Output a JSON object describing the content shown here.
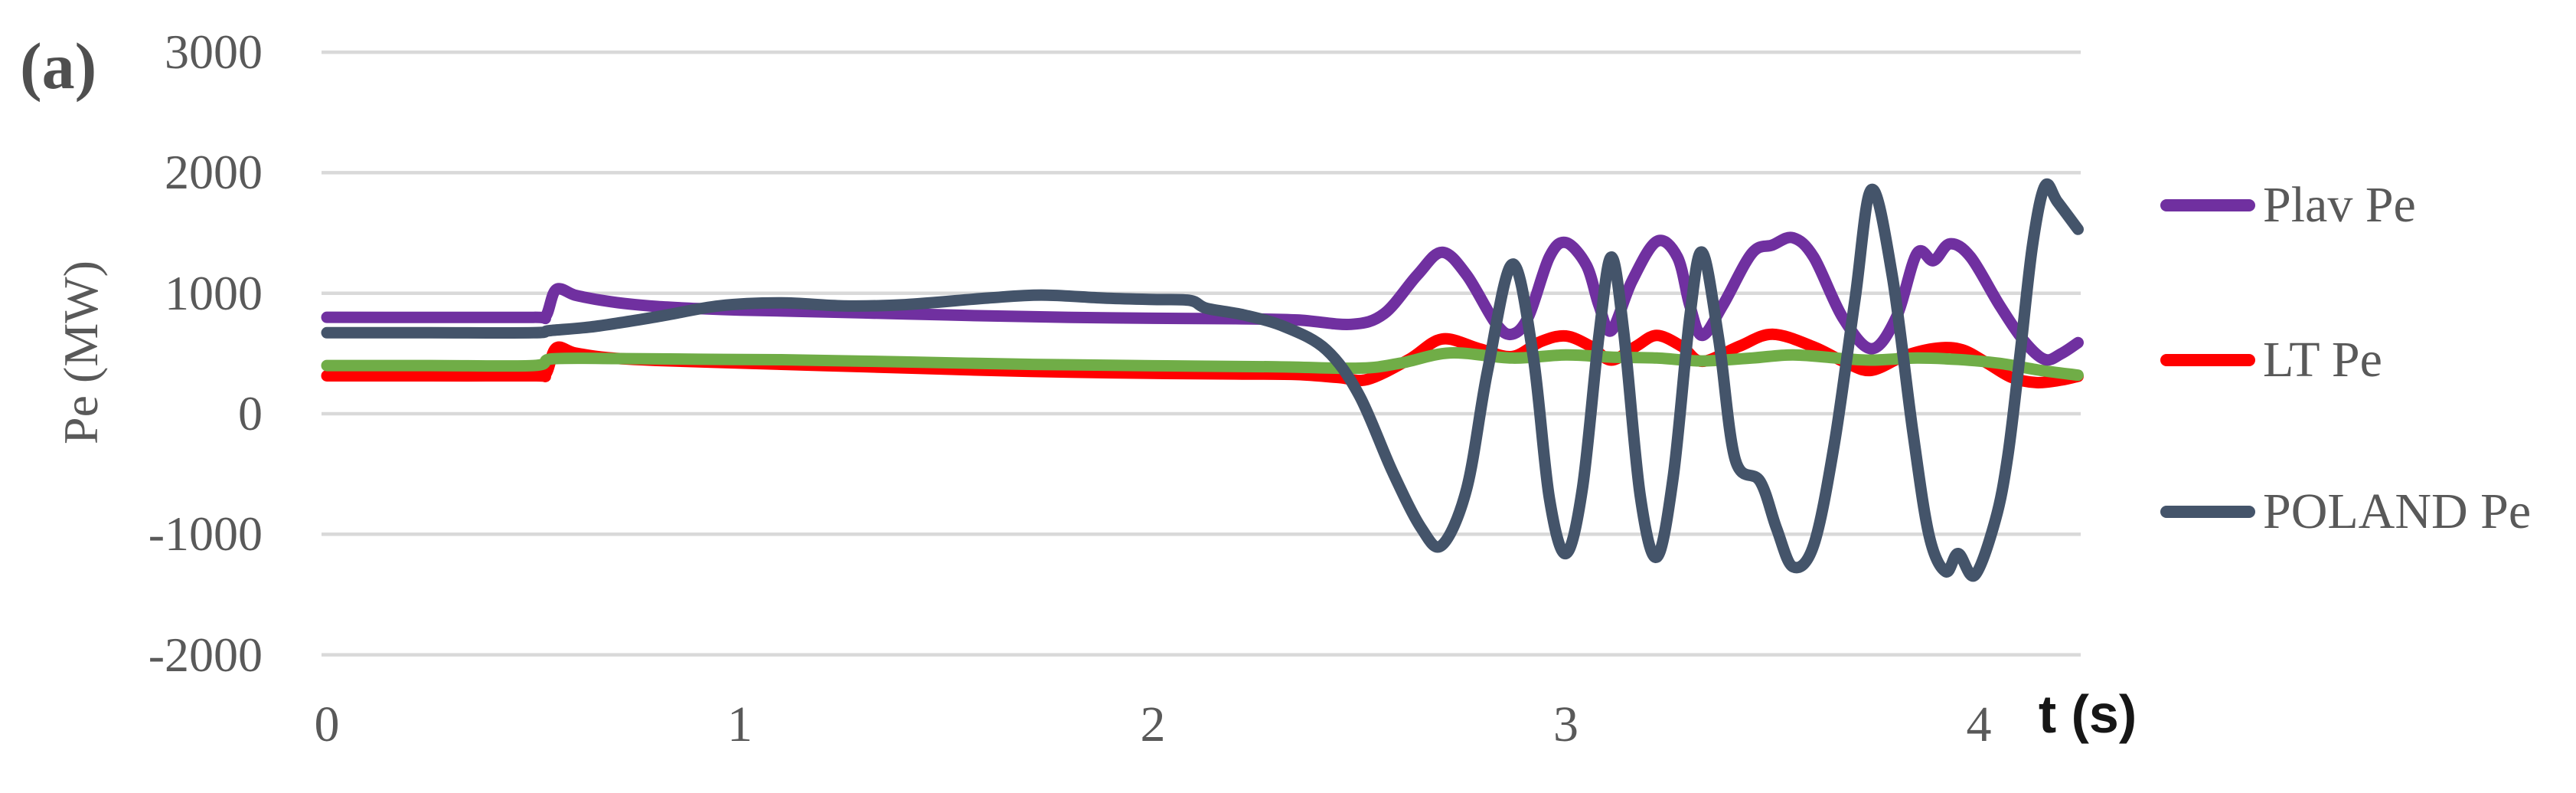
{
  "figure_label": "(a)",
  "axes": {
    "y_title": "Pe (MW)",
    "x_title": "t (s)",
    "y_ticks": [
      3000,
      2000,
      1000,
      0,
      -1000,
      -2000
    ],
    "x_ticks": [
      0,
      1,
      2,
      3,
      4
    ]
  },
  "legend": [
    {
      "label": "Plav Pe",
      "color": "#7030A0"
    },
    {
      "label": "LT Pe",
      "color": "#FF0000"
    },
    {
      "label": "POLAND Pe",
      "color": "#44546A"
    }
  ],
  "colors": {
    "background": "#FFFFFF",
    "gridline": "#D9D9D9",
    "tick_text": "#595959",
    "plav": "#7030A0",
    "lt": "#FF0000",
    "poland": "#44546A",
    "unlabeled_green": "#70AD47"
  },
  "chart_data": {
    "type": "line",
    "title": "",
    "xlabel": "t (s)",
    "ylabel": "Pe (MW)",
    "xlim": [
      0,
      4.24
    ],
    "ylim": [
      -2000,
      3000
    ],
    "grid": "horizontal-only",
    "legend_position": "right",
    "smooth_lines": true,
    "series": [
      {
        "name": "LT Pe",
        "color": "#FF0000",
        "points": [
          [
            0,
            315
          ],
          [
            0.25,
            315
          ],
          [
            0.5,
            315
          ],
          [
            0.53,
            330
          ],
          [
            0.555,
            545
          ],
          [
            0.6,
            505
          ],
          [
            0.68,
            465
          ],
          [
            0.8,
            442
          ],
          [
            1.0,
            420
          ],
          [
            1.2,
            400
          ],
          [
            1.4,
            380
          ],
          [
            1.6,
            360
          ],
          [
            1.8,
            345
          ],
          [
            2.0,
            335
          ],
          [
            2.2,
            330
          ],
          [
            2.35,
            325
          ],
          [
            2.45,
            300
          ],
          [
            2.52,
            285
          ],
          [
            2.62,
            450
          ],
          [
            2.7,
            620
          ],
          [
            2.79,
            540
          ],
          [
            2.87,
            475
          ],
          [
            2.94,
            600
          ],
          [
            3.0,
            645
          ],
          [
            3.06,
            560
          ],
          [
            3.11,
            445
          ],
          [
            3.17,
            560
          ],
          [
            3.22,
            650
          ],
          [
            3.28,
            560
          ],
          [
            3.33,
            435
          ],
          [
            3.42,
            560
          ],
          [
            3.5,
            660
          ],
          [
            3.6,
            555
          ],
          [
            3.68,
            420
          ],
          [
            3.74,
            360
          ],
          [
            3.82,
            480
          ],
          [
            3.9,
            545
          ],
          [
            3.96,
            530
          ],
          [
            4.02,
            420
          ],
          [
            4.08,
            300
          ],
          [
            4.14,
            258
          ],
          [
            4.2,
            280
          ],
          [
            4.24,
            310
          ]
        ]
      },
      {
        "name": "(unlabeled green series)",
        "color": "#70AD47",
        "points": [
          [
            0,
            400
          ],
          [
            0.25,
            400
          ],
          [
            0.5,
            400
          ],
          [
            0.545,
            455
          ],
          [
            0.7,
            458
          ],
          [
            0.9,
            452
          ],
          [
            1.1,
            448
          ],
          [
            1.4,
            430
          ],
          [
            1.7,
            410
          ],
          [
            2.0,
            398
          ],
          [
            2.3,
            390
          ],
          [
            2.5,
            378
          ],
          [
            2.6,
            420
          ],
          [
            2.72,
            505
          ],
          [
            2.87,
            462
          ],
          [
            3.0,
            488
          ],
          [
            3.11,
            470
          ],
          [
            3.22,
            462
          ],
          [
            3.33,
            438
          ],
          [
            3.45,
            462
          ],
          [
            3.55,
            488
          ],
          [
            3.67,
            458
          ],
          [
            3.74,
            445
          ],
          [
            3.85,
            462
          ],
          [
            3.95,
            450
          ],
          [
            4.05,
            418
          ],
          [
            4.15,
            360
          ],
          [
            4.24,
            320
          ]
        ]
      },
      {
        "name": "Plav Pe",
        "color": "#7030A0",
        "points": [
          [
            0,
            800
          ],
          [
            0.25,
            800
          ],
          [
            0.5,
            800
          ],
          [
            0.53,
            810
          ],
          [
            0.555,
            1030
          ],
          [
            0.6,
            985
          ],
          [
            0.65,
            950
          ],
          [
            0.72,
            915
          ],
          [
            0.8,
            890
          ],
          [
            0.9,
            872
          ],
          [
            1.0,
            860
          ],
          [
            1.2,
            845
          ],
          [
            1.4,
            828
          ],
          [
            1.6,
            812
          ],
          [
            1.8,
            800
          ],
          [
            2.0,
            792
          ],
          [
            2.2,
            788
          ],
          [
            2.35,
            778
          ],
          [
            2.48,
            742
          ],
          [
            2.56,
            830
          ],
          [
            2.64,
            1150
          ],
          [
            2.7,
            1340
          ],
          [
            2.76,
            1150
          ],
          [
            2.83,
            750
          ],
          [
            2.87,
            660
          ],
          [
            2.91,
            810
          ],
          [
            2.96,
            1300
          ],
          [
            3.0,
            1420
          ],
          [
            3.05,
            1230
          ],
          [
            3.08,
            900
          ],
          [
            3.11,
            690
          ],
          [
            3.16,
            1100
          ],
          [
            3.22,
            1430
          ],
          [
            3.27,
            1300
          ],
          [
            3.3,
            900
          ],
          [
            3.33,
            650
          ],
          [
            3.38,
            900
          ],
          [
            3.45,
            1330
          ],
          [
            3.5,
            1400
          ],
          [
            3.55,
            1460
          ],
          [
            3.6,
            1300
          ],
          [
            3.67,
            800
          ],
          [
            3.74,
            540
          ],
          [
            3.8,
            800
          ],
          [
            3.85,
            1330
          ],
          [
            3.89,
            1270
          ],
          [
            3.93,
            1410
          ],
          [
            3.98,
            1300
          ],
          [
            4.05,
            900
          ],
          [
            4.11,
            600
          ],
          [
            4.16,
            450
          ],
          [
            4.2,
            500
          ],
          [
            4.24,
            590
          ]
        ]
      },
      {
        "name": "POLAND Pe",
        "color": "#44546A",
        "points": [
          [
            0,
            672
          ],
          [
            0.25,
            672
          ],
          [
            0.5,
            672
          ],
          [
            0.54,
            690
          ],
          [
            0.65,
            725
          ],
          [
            0.8,
            805
          ],
          [
            0.95,
            895
          ],
          [
            1.1,
            920
          ],
          [
            1.25,
            895
          ],
          [
            1.4,
            905
          ],
          [
            1.6,
            960
          ],
          [
            1.73,
            985
          ],
          [
            1.88,
            960
          ],
          [
            2.0,
            948
          ],
          [
            2.09,
            940
          ],
          [
            2.13,
            875
          ],
          [
            2.22,
            820
          ],
          [
            2.32,
            720
          ],
          [
            2.42,
            530
          ],
          [
            2.5,
            150
          ],
          [
            2.58,
            -480
          ],
          [
            2.65,
            -950
          ],
          [
            2.7,
            -1090
          ],
          [
            2.76,
            -620
          ],
          [
            2.81,
            350
          ],
          [
            2.87,
            1240
          ],
          [
            2.92,
            500
          ],
          [
            2.96,
            -700
          ],
          [
            3.0,
            -1160
          ],
          [
            3.04,
            -620
          ],
          [
            3.08,
            650
          ],
          [
            3.11,
            1300
          ],
          [
            3.14,
            680
          ],
          [
            3.18,
            -680
          ],
          [
            3.22,
            -1190
          ],
          [
            3.26,
            -520
          ],
          [
            3.3,
            800
          ],
          [
            3.33,
            1340
          ],
          [
            3.37,
            620
          ],
          [
            3.41,
            -380
          ],
          [
            3.47,
            -560
          ],
          [
            3.51,
            -950
          ],
          [
            3.55,
            -1270
          ],
          [
            3.6,
            -1090
          ],
          [
            3.65,
            -250
          ],
          [
            3.7,
            950
          ],
          [
            3.74,
            1860
          ],
          [
            3.79,
            1150
          ],
          [
            3.84,
            -150
          ],
          [
            3.88,
            -1020
          ],
          [
            3.92,
            -1310
          ],
          [
            3.95,
            -1160
          ],
          [
            3.99,
            -1340
          ],
          [
            4.04,
            -880
          ],
          [
            4.07,
            -350
          ],
          [
            4.1,
            500
          ],
          [
            4.13,
            1400
          ],
          [
            4.16,
            1890
          ],
          [
            4.19,
            1760
          ],
          [
            4.24,
            1530
          ]
        ]
      }
    ]
  }
}
